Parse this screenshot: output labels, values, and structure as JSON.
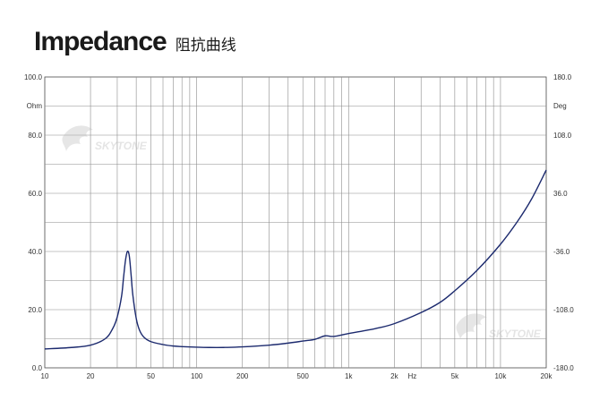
{
  "header": {
    "title": "Impedance",
    "subtitle": "阻抗曲线"
  },
  "watermarks": [
    "SKYTONE",
    "SKYTONE"
  ],
  "chart_data": {
    "type": "line",
    "title": "Impedance",
    "x_scale": "log",
    "xlim": [
      10,
      20000
    ],
    "ylim": [
      0,
      100
    ],
    "y2lim": [
      -180,
      180
    ],
    "grid": true,
    "x_ticks": [
      {
        "value": 10,
        "label": "10"
      },
      {
        "value": 20,
        "label": "20"
      },
      {
        "value": 50,
        "label": "50"
      },
      {
        "value": 100,
        "label": "100"
      },
      {
        "value": 200,
        "label": "200"
      },
      {
        "value": 500,
        "label": "500"
      },
      {
        "value": 1000,
        "label": "1k"
      },
      {
        "value": 2000,
        "label": "2k"
      },
      {
        "value": 5000,
        "label": "5k"
      },
      {
        "value": 10000,
        "label": "10k"
      },
      {
        "value": 20000,
        "label": "20k"
      }
    ],
    "x_unit": "Hz",
    "y_ticks": [
      {
        "value": 100,
        "label": "100.0"
      },
      {
        "value": 80,
        "label": "80.0"
      },
      {
        "value": 60,
        "label": "60.0"
      },
      {
        "value": 40,
        "label": "40.0"
      },
      {
        "value": 20,
        "label": "20.0"
      },
      {
        "value": 0,
        "label": "0.0"
      }
    ],
    "y_unit": "Ohm",
    "y2_ticks": [
      {
        "value": 180,
        "label": "180.0"
      },
      {
        "value": 108,
        "label": "108.0"
      },
      {
        "value": 36,
        "label": "36.0"
      },
      {
        "value": -36,
        "label": "-36.0"
      },
      {
        "value": -108,
        "label": "-108.0"
      },
      {
        "value": -180,
        "label": "-180.0"
      }
    ],
    "y2_unit": "Deg",
    "series": [
      {
        "color": "#1c2a6e",
        "x": [
          10,
          15,
          20,
          25,
          28,
          30,
          32,
          33,
          34,
          35,
          36,
          37,
          38,
          40,
          42,
          45,
          50,
          60,
          70,
          80,
          100,
          120,
          150,
          200,
          300,
          400,
          500,
          600,
          700,
          800,
          1000,
          1500,
          2000,
          3000,
          4000,
          5000,
          7000,
          10000,
          13000,
          16000,
          20000
        ],
        "y": [
          6.5,
          7.0,
          7.8,
          10.0,
          13.5,
          17.5,
          24.5,
          31.0,
          37.0,
          40.0,
          38.5,
          32.0,
          25.0,
          17.0,
          13.0,
          10.5,
          9.0,
          8.0,
          7.5,
          7.3,
          7.1,
          7.0,
          7.0,
          7.2,
          7.8,
          8.5,
          9.2,
          9.8,
          11.0,
          10.8,
          11.8,
          13.5,
          15.2,
          19.0,
          22.5,
          26.5,
          33.5,
          42.5,
          50.5,
          58.0,
          68.0
        ]
      }
    ]
  }
}
